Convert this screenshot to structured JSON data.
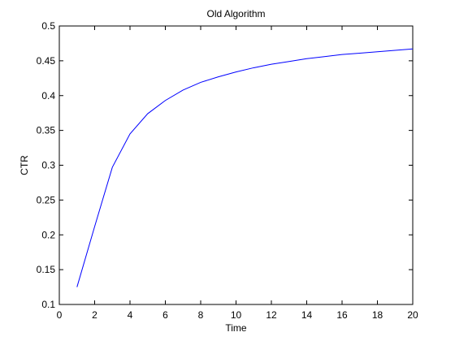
{
  "chart_data": {
    "type": "line",
    "title": "Old Algorithm",
    "xlabel": "Time",
    "ylabel": "CTR",
    "xlim": [
      0,
      20
    ],
    "ylim": [
      0.1,
      0.5
    ],
    "xticks": [
      0,
      2,
      4,
      6,
      8,
      10,
      12,
      14,
      16,
      18,
      20
    ],
    "yticks": [
      0.1,
      0.15,
      0.2,
      0.25,
      0.3,
      0.35,
      0.4,
      0.45,
      0.5
    ],
    "xtick_labels": [
      "0",
      "2",
      "4",
      "6",
      "8",
      "10",
      "12",
      "14",
      "16",
      "18",
      "20"
    ],
    "ytick_labels": [
      "0.1",
      "0.15",
      "0.2",
      "0.25",
      "0.3",
      "0.35",
      "0.4",
      "0.45",
      "0.5"
    ],
    "grid": false,
    "series": [
      {
        "color": "#0000ff",
        "x": [
          1,
          2,
          3,
          4,
          5,
          6,
          7,
          8,
          9,
          10,
          11,
          12,
          13,
          14,
          15,
          16,
          17,
          18,
          19,
          20
        ],
        "y": [
          0.125,
          0.212,
          0.297,
          0.345,
          0.374,
          0.393,
          0.408,
          0.419,
          0.427,
          0.434,
          0.44,
          0.445,
          0.449,
          0.453,
          0.456,
          0.459,
          0.461,
          0.463,
          0.465,
          0.467
        ]
      }
    ]
  }
}
